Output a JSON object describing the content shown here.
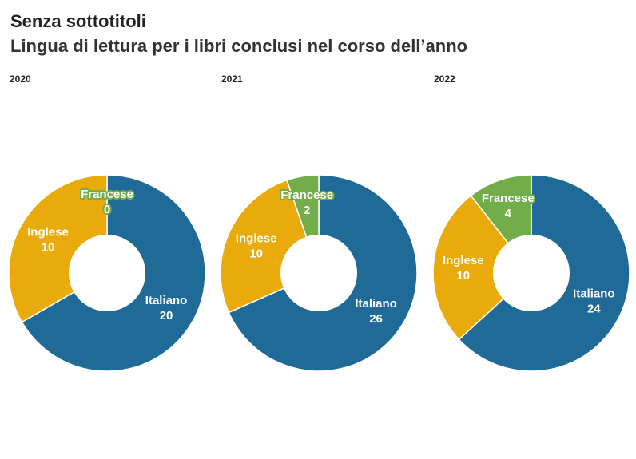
{
  "title": "Senza sottotitoli",
  "subtitle": "Lingua di lettura per i libri conclusi nel corso dell’anno",
  "colors": {
    "Italiano": "#1f6a96",
    "Inglese": "#e8ab0b",
    "Francese": "#73ad4a"
  },
  "chart_data": [
    {
      "type": "pie",
      "title": "2020",
      "donut": true,
      "slices": [
        {
          "label": "Italiano",
          "value": 20
        },
        {
          "label": "Inglese",
          "value": 10
        },
        {
          "label": "Francese",
          "value": 0
        }
      ]
    },
    {
      "type": "pie",
      "title": "2021",
      "donut": true,
      "slices": [
        {
          "label": "Italiano",
          "value": 26
        },
        {
          "label": "Inglese",
          "value": 10
        },
        {
          "label": "Francese",
          "value": 2
        }
      ]
    },
    {
      "type": "pie",
      "title": "2022",
      "donut": true,
      "slices": [
        {
          "label": "Italiano",
          "value": 24
        },
        {
          "label": "Inglese",
          "value": 10
        },
        {
          "label": "Francese",
          "value": 4
        }
      ]
    }
  ]
}
